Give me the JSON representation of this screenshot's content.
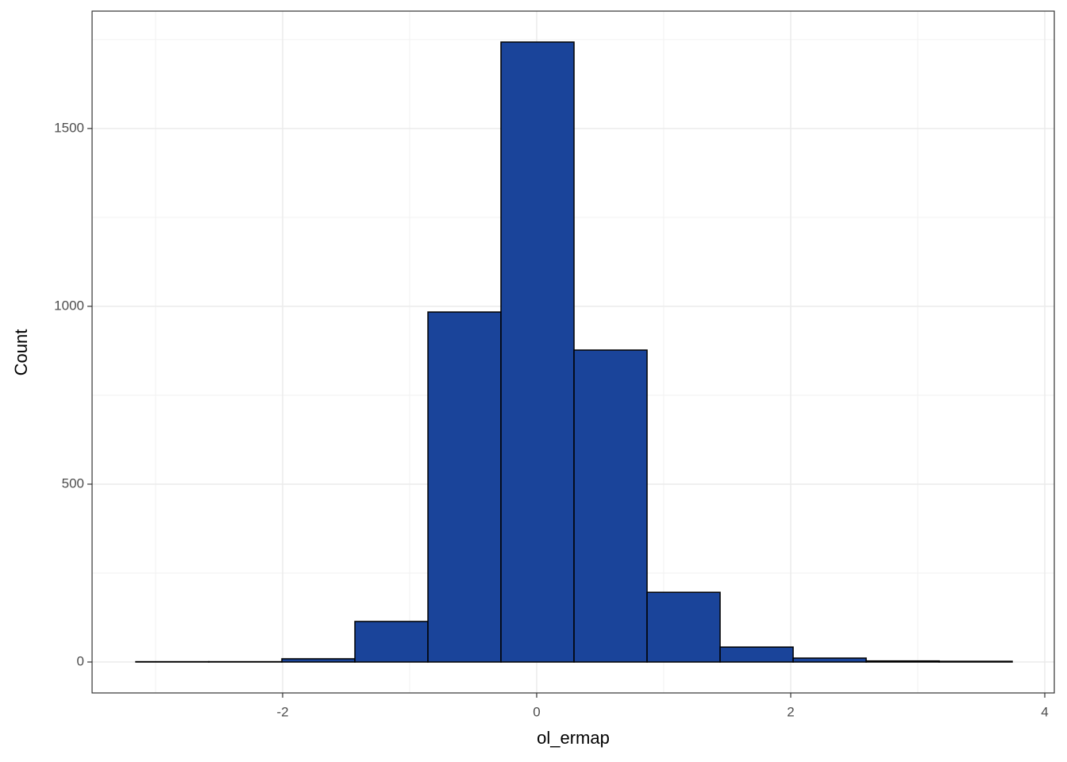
{
  "chart_data": {
    "type": "histogram",
    "x_label": "ol_ermap",
    "y_label": "Count",
    "bins": [
      -3.156,
      -2.581,
      -2.006,
      -1.431,
      -0.856,
      -0.281,
      0.294,
      0.869,
      1.444,
      2.019,
      2.594,
      3.169,
      3.744
    ],
    "values": [
      1,
      1,
      9,
      114,
      984,
      1743,
      877,
      196,
      42,
      11,
      3,
      2
    ],
    "color": "#1a449a",
    "edge_color": "#000000",
    "xlim": [
      -3.5,
      4.075
    ],
    "ylim": [
      -87,
      1830
    ],
    "xticks": [
      -2,
      0,
      2,
      4
    ],
    "yticks": [
      0,
      500,
      1000,
      1500
    ],
    "x_minor_ticks": [
      -3,
      -1,
      1,
      3
    ],
    "y_minor_ticks": [
      250,
      750,
      1250,
      1750
    ],
    "grid": true
  }
}
